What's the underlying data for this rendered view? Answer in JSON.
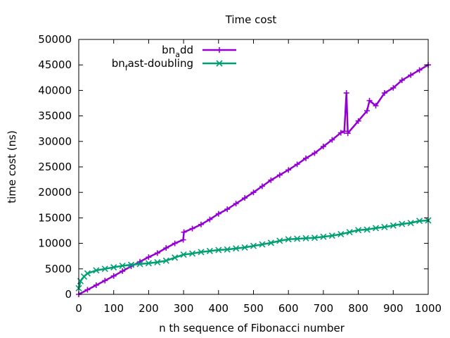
{
  "chart_data": {
    "type": "line",
    "title": "Time cost",
    "xlabel": "n th sequence of Fibonacci number",
    "ylabel": "time cost (ns)",
    "xlim": [
      0,
      1000
    ],
    "ylim": [
      0,
      50000
    ],
    "x_ticks": [
      0,
      100,
      200,
      300,
      400,
      500,
      600,
      700,
      800,
      900,
      1000
    ],
    "y_ticks": [
      0,
      5000,
      10000,
      15000,
      20000,
      25000,
      30000,
      35000,
      40000,
      45000,
      50000
    ],
    "grid": false,
    "legend_position": "top-right",
    "series": [
      {
        "name": "bn_add",
        "legend_base": "bn",
        "legend_sub": "a",
        "legend_rest": "dd",
        "color": "#9400d3",
        "marker": "plus",
        "x": [
          0,
          25,
          50,
          75,
          100,
          125,
          150,
          175,
          200,
          225,
          250,
          275,
          299,
          301,
          325,
          350,
          375,
          400,
          425,
          450,
          475,
          500,
          525,
          550,
          575,
          600,
          625,
          650,
          675,
          700,
          725,
          750,
          760,
          766,
          770,
          800,
          825,
          832,
          850,
          875,
          900,
          925,
          950,
          975,
          1000
        ],
        "y": [
          0,
          900,
          1800,
          2700,
          3600,
          4550,
          5500,
          6400,
          7300,
          8100,
          9100,
          10000,
          10700,
          12200,
          12900,
          13700,
          14700,
          15800,
          16700,
          17800,
          18900,
          20000,
          21200,
          22400,
          23400,
          24400,
          25500,
          26700,
          27700,
          29000,
          30300,
          31700,
          32000,
          39500,
          31600,
          34000,
          36000,
          38000,
          37000,
          39500,
          40500,
          42000,
          43000,
          44000,
          45000
        ]
      },
      {
        "name": "bn_fast-doubling",
        "legend_base": "bn",
        "legend_sub": "f",
        "legend_rest": "ast-doubling",
        "color": "#009e73",
        "marker": "cross",
        "x": [
          0,
          5,
          15,
          25,
          50,
          75,
          100,
          125,
          150,
          175,
          200,
          225,
          250,
          275,
          300,
          325,
          350,
          375,
          400,
          425,
          450,
          475,
          500,
          525,
          550,
          575,
          600,
          625,
          650,
          675,
          700,
          725,
          750,
          775,
          800,
          825,
          850,
          875,
          900,
          925,
          950,
          975,
          1000
        ],
        "y": [
          1200,
          2600,
          3500,
          4100,
          4700,
          5000,
          5300,
          5600,
          5800,
          5950,
          6100,
          6300,
          6600,
          7200,
          7800,
          8000,
          8300,
          8500,
          8700,
          8800,
          9000,
          9200,
          9500,
          9800,
          10100,
          10500,
          10800,
          10900,
          11000,
          11100,
          11300,
          11500,
          11800,
          12200,
          12600,
          12700,
          13000,
          13200,
          13500,
          13800,
          14000,
          14400,
          14500
        ]
      }
    ]
  }
}
